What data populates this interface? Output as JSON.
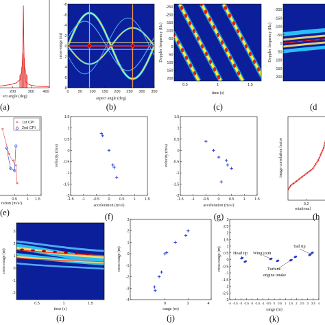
{
  "colors": {
    "jet_bg": "#0b1f9a",
    "red": "#e0201a",
    "blue": "#2a3fd0"
  },
  "chart_data": [
    {
      "id": "a",
      "type": "line",
      "panel_label": "(a)",
      "xlabel": "ect angle (deg)",
      "xticks": [
        "200",
        "300",
        "400"
      ],
      "xlim": [
        130,
        400
      ],
      "series": [
        {
          "color": "#e0201a",
          "x": [
            130,
            160,
            190,
            220,
            240,
            250,
            255,
            258,
            260,
            262,
            265,
            270,
            280,
            300,
            330,
            360,
            400
          ],
          "y": [
            0.02,
            0.03,
            0.04,
            0.06,
            0.1,
            0.2,
            0.45,
            1.0,
            0.55,
            0.3,
            0.15,
            0.08,
            0.05,
            0.03,
            0.02,
            0.015,
            0.01
          ]
        }
      ]
    },
    {
      "id": "b",
      "type": "heatmap",
      "panel_label": "(b)",
      "xlabel": "aspect angle (deg)",
      "ylabel": "cross-range (m)",
      "xticks": [
        "0",
        "50",
        "100",
        "150",
        "200",
        "250",
        "300",
        "350"
      ],
      "yticks": [
        "-8",
        "-6",
        "-4",
        "-2",
        "0",
        "2",
        "4",
        "6",
        "8"
      ]
    },
    {
      "id": "c",
      "type": "heatmap",
      "panel_label": "(c)",
      "xlabel": "time (s)",
      "ylabel": "Doppler frequency (Hz)",
      "xticks": [
        "0.5",
        "1",
        "1.5"
      ],
      "yticks": [
        "-250",
        "-200",
        "-150",
        "-100",
        "-50",
        "0",
        "50",
        "100",
        "150",
        "200"
      ]
    },
    {
      "id": "d",
      "type": "heatmap",
      "panel_label": "(d",
      "ylabel": "Doppler frequency (Hz)",
      "yticks": [
        "-200",
        "-150",
        "-100",
        "-50",
        "0",
        "50",
        "100",
        "150",
        "200"
      ]
    },
    {
      "id": "e",
      "type": "scatter",
      "panel_label": "(e)",
      "xlabel": "ration (m/s²)",
      "xticks": [
        "0.5",
        "1",
        "1.5"
      ],
      "xlim": [
        -0.1,
        1.5
      ],
      "ylim": [
        -2,
        1.5
      ],
      "legend": [
        "1st CPI",
        "2nd CPI"
      ],
      "legend_position": "top-right",
      "series": [
        {
          "name": "1st CPI",
          "color": "#e0201a",
          "marker": "star",
          "x": [
            0.05,
            0.3,
            0.45,
            0.55,
            0.6
          ],
          "y": [
            0.9,
            -0.2,
            -0.5,
            -0.7,
            -1.5
          ]
        },
        {
          "name": "2nd CPI",
          "color": "#2a3fd0",
          "marker": "diamond",
          "x": [
            0.2,
            0.35,
            0.5,
            0.55
          ],
          "y": [
            0.1,
            -0.8,
            -0.9,
            0.2
          ]
        }
      ]
    },
    {
      "id": "f",
      "type": "scatter",
      "panel_label": "(f)",
      "xlabel": "acceleration (m/s²)",
      "ylabel": "velocity (m/s)",
      "xlim": [
        -1.5,
        1.5
      ],
      "ylim": [
        -2,
        1.5
      ],
      "xticks": [
        "-1.5",
        "-1",
        "-0.5",
        "0",
        "0.5",
        "1",
        "1.5"
      ],
      "yticks": [
        "1.5",
        "1",
        "0.5",
        "0",
        "-0.5",
        "-1",
        "-1.5",
        "-2"
      ],
      "series": [
        {
          "color": "#2a3fd0",
          "x": [
            -0.3,
            -0.25,
            0.0,
            0.15,
            0.2,
            0.3
          ],
          "y": [
            0.75,
            0.65,
            0.0,
            -0.65,
            -0.75,
            -1.2
          ]
        }
      ]
    },
    {
      "id": "g",
      "type": "scatter",
      "panel_label": "(g)",
      "xlabel": "acceleration (m/s²)",
      "ylabel": "velocity (m/s)",
      "xlim": [
        -1.5,
        1.5
      ],
      "ylim": [
        -2,
        1.5
      ],
      "xticks": [
        "-1.5",
        "-1",
        "-0.5",
        "0",
        "0.5",
        "1",
        "1.5"
      ],
      "yticks": [
        "1.5",
        "1",
        "0.5",
        "0",
        "-0.5",
        "-1",
        "-1.5",
        "-2"
      ],
      "series": [
        {
          "color": "#2a3fd0",
          "x": [
            -0.5,
            -0.2,
            0.0,
            0.3,
            0.35,
            0.5,
            0.1
          ],
          "y": [
            0.4,
            0.0,
            -0.3,
            -0.45,
            -0.65,
            -0.8,
            -1.4
          ]
        }
      ]
    },
    {
      "id": "h",
      "type": "line",
      "panel_label": "(h",
      "xlabel": "rotational",
      "ylabel": "image correlation factor",
      "xticks": [
        "0.2"
      ],
      "xlim": [
        0,
        0.45
      ],
      "ylim": [
        0.2,
        0.6
      ],
      "series": [
        {
          "color": "#e0201a",
          "x": [
            0,
            0.03,
            0.06,
            0.09,
            0.12,
            0.15,
            0.18,
            0.21,
            0.24,
            0.27,
            0.3,
            0.33,
            0.36,
            0.39,
            0.42,
            0.45
          ],
          "y": [
            0.25,
            0.27,
            0.28,
            0.29,
            0.3,
            0.31,
            0.32,
            0.33,
            0.34,
            0.35,
            0.37,
            0.39,
            0.42,
            0.45,
            0.5,
            0.56
          ]
        }
      ]
    },
    {
      "id": "i",
      "type": "heatmap",
      "panel_label": "(i)",
      "xlabel": "time (s)",
      "ylabel": "cross range (m)",
      "xticks": [
        "0.5",
        "1",
        "1.5"
      ],
      "yticks": [
        "-2",
        "-1",
        "0",
        "1",
        "2",
        "3"
      ]
    },
    {
      "id": "j",
      "type": "scatter",
      "panel_label": "(j)",
      "xlabel": "range (m)",
      "ylabel": "cross range (m)",
      "xlim": [
        -3,
        4
      ],
      "ylim": [
        -4,
        3
      ],
      "xticks": [
        "0",
        "2",
        "4"
      ],
      "yticks": [
        "3",
        "2",
        "1",
        "0",
        "-1",
        "-2",
        "-3",
        "-4"
      ],
      "series": [
        {
          "color": "#2a3fd0",
          "x": [
            2.0,
            1.8,
            0.9,
            0.0,
            0.15,
            -0.3,
            -0.5,
            -0.9,
            -0.85
          ],
          "y": [
            2.0,
            1.6,
            1.0,
            0.0,
            0.1,
            -1.6,
            -2.0,
            -2.9,
            -3.2
          ]
        }
      ]
    },
    {
      "id": "k",
      "type": "scatter",
      "panel_label": "(k)",
      "xlabel": "range (m)",
      "ylabel": "cross range (m)",
      "xlim": [
        -4,
        4
      ],
      "ylim": [
        -3,
        3
      ],
      "xticks": [
        "-4",
        "-3.5",
        "-3",
        "-2.5",
        "-2",
        "-1.5",
        "-1",
        "-0.5",
        "0",
        "0.5",
        "1",
        "1.5",
        "2",
        "2.5",
        "3",
        "3.5",
        "4"
      ],
      "yticks": [
        "3",
        "2.5",
        "2",
        "1.5",
        "1",
        "0.5",
        "0",
        "-0.5",
        "-1",
        "-1.5",
        "-2",
        "-2.5",
        "-3"
      ],
      "annotations": [
        "Head tip",
        "Wing joint",
        "Tail tip",
        "Turbine",
        "engine intake"
      ],
      "series": [
        {
          "color": "#2a3fd0",
          "x": [
            -2.9,
            -2.6,
            -0.3,
            0.3,
            1.5,
            1.9,
            3.2,
            3.4
          ],
          "y": [
            0.1,
            -0.15,
            0.05,
            -0.1,
            -0.05,
            0.2,
            0.35,
            0.5
          ]
        }
      ]
    }
  ]
}
